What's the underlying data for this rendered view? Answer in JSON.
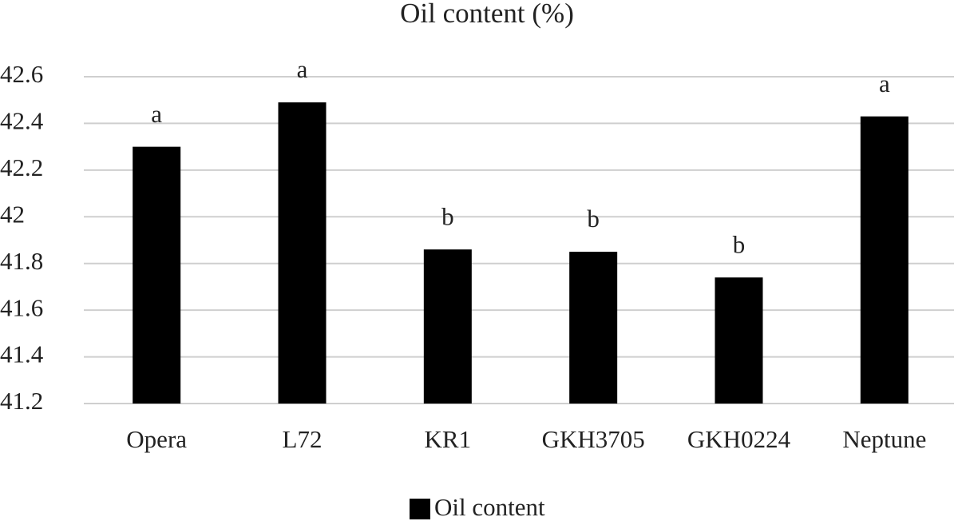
{
  "chart_data": {
    "type": "bar",
    "title": "Oil content (%)",
    "categories": [
      "Opera",
      "L72",
      "KR1",
      "GKH3705",
      "GKH0224",
      "Neptune"
    ],
    "series": [
      {
        "name": "Oil content",
        "color": "#000000",
        "values": [
          42.3,
          42.49,
          41.86,
          41.85,
          41.74,
          42.43
        ]
      }
    ],
    "annotations": [
      "a",
      "a",
      "b",
      "b",
      "b",
      "a"
    ],
    "ylim": [
      41.2,
      42.6
    ],
    "yticks": [
      41.2,
      41.4,
      41.6,
      41.8,
      42,
      42.2,
      42.4,
      42.6
    ],
    "grid": true,
    "legend": "bottom"
  }
}
